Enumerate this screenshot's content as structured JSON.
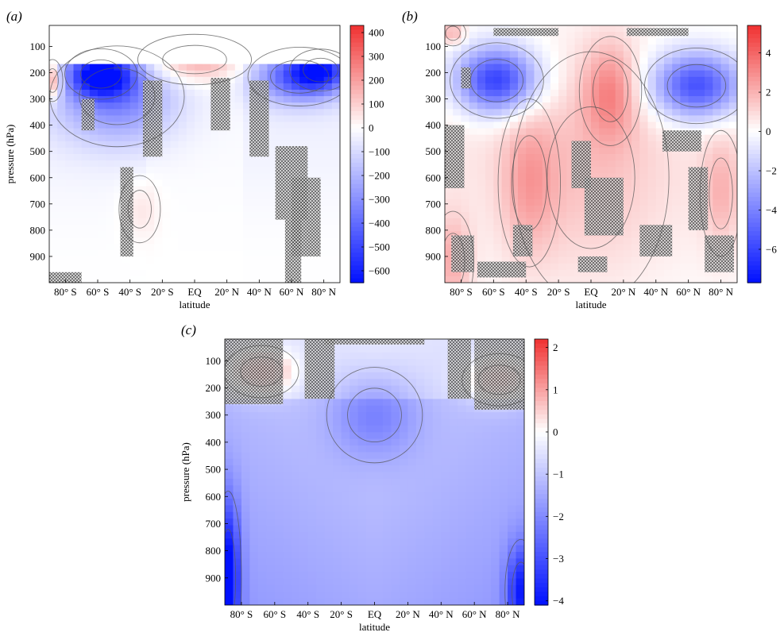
{
  "chart_data": [
    {
      "panel_label": "(a)",
      "type": "heatmap",
      "title": "",
      "xlabel": "latitude",
      "ylabel": "pressure (hPa)",
      "x_ticks": [
        "80° S",
        "60° S",
        "40° S",
        "20° S",
        "EQ",
        "20° N",
        "40° N",
        "60° N",
        "80° N"
      ],
      "x_tick_values": [
        -80,
        -60,
        -40,
        -20,
        0,
        20,
        40,
        60,
        80
      ],
      "xlim": [
        -90,
        90
      ],
      "y_ticks": [
        "100",
        "200",
        "300",
        "400",
        "500",
        "600",
        "700",
        "800",
        "900"
      ],
      "y_tick_values": [
        100,
        200,
        300,
        400,
        500,
        600,
        700,
        800,
        900
      ],
      "ylim": [
        1000,
        20
      ],
      "y_inverted": true,
      "colorbar": {
        "ticks": [
          "400",
          "300",
          "200",
          "100",
          "0",
          "−100",
          "−200",
          "−300",
          "−400",
          "−500",
          "−600"
        ],
        "tick_values": [
          400,
          300,
          200,
          100,
          0,
          -100,
          -200,
          -300,
          -400,
          -500,
          -600
        ],
        "range": [
          -650,
          430
        ]
      },
      "blank_above_hpa": 168,
      "features": [
        {
          "lat": -58,
          "p": 205,
          "value": -560,
          "slat": 14,
          "sp": 60
        },
        {
          "lat": -48,
          "p": 290,
          "value": -300,
          "slat": 26,
          "sp": 120
        },
        {
          "lat": 65,
          "p": 215,
          "value": -420,
          "slat": 20,
          "sp": 70
        },
        {
          "lat": 78,
          "p": 190,
          "value": -360,
          "slat": 12,
          "sp": 50
        },
        {
          "lat": -88,
          "p": 230,
          "value": 300,
          "slat": 4,
          "sp": 50
        },
        {
          "lat": 0,
          "p": 150,
          "value": 200,
          "slat": 22,
          "sp": 60
        },
        {
          "lat": -34,
          "p": 720,
          "value": 60,
          "slat": 8,
          "sp": 80
        }
      ],
      "colors": {
        "neg": "#0010ff",
        "pos": "#f03030",
        "mid": "#ffffff"
      }
    },
    {
      "panel_label": "(b)",
      "type": "heatmap",
      "title": "",
      "xlabel": "latitude",
      "ylabel": "",
      "x_ticks": [
        "80° S",
        "60° S",
        "40° S",
        "20° S",
        "EQ",
        "20° N",
        "40° N",
        "60° N",
        "80° N"
      ],
      "x_tick_values": [
        -80,
        -60,
        -40,
        -20,
        0,
        20,
        40,
        60,
        80
      ],
      "xlim": [
        -90,
        90
      ],
      "y_ticks": [
        "100",
        "200",
        "300",
        "400",
        "500",
        "600",
        "700",
        "800",
        "900"
      ],
      "y_tick_values": [
        100,
        200,
        300,
        400,
        500,
        600,
        700,
        800,
        900
      ],
      "ylim": [
        1000,
        20
      ],
      "y_inverted": true,
      "colorbar": {
        "ticks": [
          "4",
          "2",
          "0",
          "−2",
          "−4",
          "−6"
        ],
        "tick_values": [
          4,
          2,
          0,
          -2,
          -4,
          -6
        ],
        "range": [
          -7.7,
          5.4
        ]
      },
      "blank_above_hpa": 0,
      "features": [
        {
          "lat": -58,
          "p": 230,
          "value": -6.5,
          "slat": 18,
          "sp": 90
        },
        {
          "lat": 65,
          "p": 250,
          "value": -6.0,
          "slat": 20,
          "sp": 90
        },
        {
          "lat": 12,
          "p": 270,
          "value": 2.5,
          "slat": 12,
          "sp": 130
        },
        {
          "lat": -38,
          "p": 620,
          "value": 1.8,
          "slat": 12,
          "sp": 200
        },
        {
          "lat": 0,
          "p": 600,
          "value": 1.0,
          "slat": 30,
          "sp": 300
        },
        {
          "lat": 80,
          "p": 660,
          "value": 1.5,
          "slat": 8,
          "sp": 150
        },
        {
          "lat": -85,
          "p": 920,
          "value": 2.0,
          "slat": 8,
          "sp": 120
        },
        {
          "lat": -85,
          "p": 50,
          "value": 2.0,
          "slat": 5,
          "sp": 30
        }
      ],
      "colors": {
        "neg": "#0010ff",
        "pos": "#f03030",
        "mid": "#ffffff"
      }
    },
    {
      "panel_label": "(c)",
      "type": "heatmap",
      "title": "",
      "xlabel": "latitude",
      "ylabel": "pressure (hPa)",
      "x_ticks": [
        "80° S",
        "60° S",
        "40° S",
        "20° S",
        "EQ",
        "20° N",
        "40° N",
        "60° N",
        "80° N"
      ],
      "x_tick_values": [
        -80,
        -60,
        -40,
        -20,
        0,
        20,
        40,
        60,
        80
      ],
      "xlim": [
        -90,
        90
      ],
      "y_ticks": [
        "100",
        "200",
        "300",
        "400",
        "500",
        "600",
        "700",
        "800",
        "900"
      ],
      "y_tick_values": [
        100,
        200,
        300,
        400,
        500,
        600,
        700,
        800,
        900
      ],
      "ylim": [
        1000,
        20
      ],
      "y_inverted": true,
      "colorbar": {
        "ticks": [
          "2",
          "1",
          "0",
          "−1",
          "−2",
          "−3",
          "−4"
        ],
        "tick_values": [
          2,
          1,
          0,
          -1,
          -2,
          -3,
          -4
        ],
        "range": [
          -4.1,
          2.2
        ]
      },
      "blank_above_hpa": 0,
      "features": [
        {
          "lat": -68,
          "p": 140,
          "value": 1.8,
          "slat": 14,
          "sp": 60
        },
        {
          "lat": 75,
          "p": 170,
          "value": 1.6,
          "slat": 14,
          "sp": 60
        },
        {
          "lat": 0,
          "p": 300,
          "value": -1.2,
          "slat": 18,
          "sp": 110
        },
        {
          "lat": -88,
          "p": 900,
          "value": -2.8,
          "slat": 5,
          "sp": 200
        },
        {
          "lat": 88,
          "p": 950,
          "value": -2.2,
          "slat": 6,
          "sp": 120
        }
      ],
      "colors": {
        "neg": "#0010ff",
        "pos": "#f03030",
        "mid": "#ffffff"
      }
    }
  ]
}
